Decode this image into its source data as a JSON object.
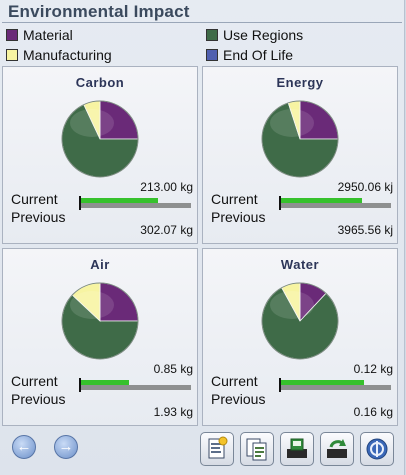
{
  "panel": {
    "title": "Environmental Impact",
    "legend": [
      {
        "label": "Material",
        "color": "#6a2a78"
      },
      {
        "label": "Use Regions",
        "color": "#3f6b48"
      },
      {
        "label": "Manufacturing",
        "color": "#f7f4a2"
      },
      {
        "label": "End Of Life",
        "color": "#5060b0"
      }
    ],
    "row_labels": {
      "current": "Current",
      "previous": "Previous"
    },
    "cells": [
      {
        "title": "Carbon",
        "current_value": "213.00 kg",
        "previous_value": "302.07 kg",
        "current_fraction": 0.7,
        "previous_fraction": 1.0,
        "pie": {
          "material": 0.25,
          "manufacturing": 0.07,
          "use_regions": 0.68
        }
      },
      {
        "title": "Energy",
        "current_value": "2950.06 kj",
        "previous_value": "3965.56 kj",
        "current_fraction": 0.74,
        "previous_fraction": 1.0,
        "pie": {
          "material": 0.25,
          "manufacturing": 0.05,
          "use_regions": 0.7
        }
      },
      {
        "title": "Air",
        "current_value": "0.85 kg",
        "previous_value": "1.93 kg",
        "current_fraction": 0.44,
        "previous_fraction": 1.0,
        "pie": {
          "material": 0.25,
          "manufacturing": 0.13,
          "use_regions": 0.62
        }
      },
      {
        "title": "Water",
        "current_value": "0.12 kg",
        "previous_value": "0.16 kg",
        "current_fraction": 0.75,
        "previous_fraction": 1.0,
        "pie": {
          "material": 0.12,
          "manufacturing": 0.08,
          "use_regions": 0.8
        }
      }
    ]
  },
  "footer": {
    "buttons": [
      {
        "icon": "arrow-left-icon"
      },
      {
        "icon": "arrow-right-icon"
      },
      {
        "icon": "report-icon"
      },
      {
        "icon": "copy-report-icon"
      },
      {
        "icon": "save-icon"
      },
      {
        "icon": "refresh-icon"
      },
      {
        "icon": "help-icon"
      }
    ]
  }
}
